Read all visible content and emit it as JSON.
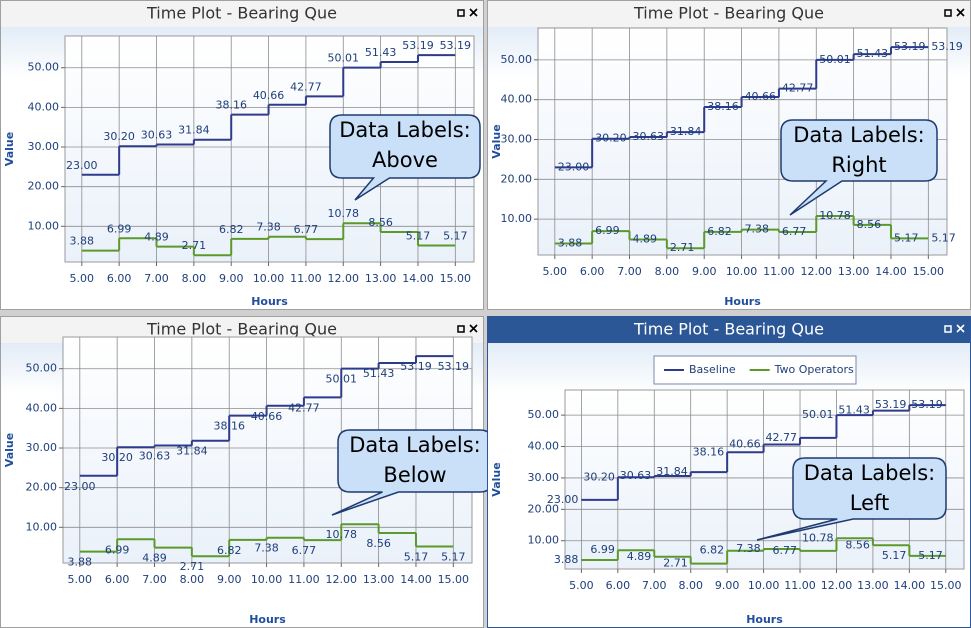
{
  "chart_data": [
    {
      "type": "step",
      "title": "Time Plot - Bearing Que",
      "xlabel": "Hours",
      "ylabel": "Value",
      "label_position": "above",
      "annotation": [
        "Data Labels:",
        "Above"
      ],
      "legend": false,
      "x": [
        5,
        6,
        7,
        8,
        9,
        10,
        11,
        12,
        13,
        14,
        15
      ],
      "xlim": [
        4.55,
        15.5
      ],
      "ylim": [
        1,
        58
      ],
      "grid": true,
      "xticks": [
        {
          "value": 5,
          "label": "5.00"
        },
        {
          "value": 6,
          "label": "6.00"
        },
        {
          "value": 7,
          "label": "7.00"
        },
        {
          "value": 8,
          "label": "8.00"
        },
        {
          "value": 9,
          "label": "9.00"
        },
        {
          "value": 10,
          "label": "10.00"
        },
        {
          "value": 11,
          "label": "11.00"
        },
        {
          "value": 12,
          "label": "12.00"
        },
        {
          "value": 13,
          "label": "13.00"
        },
        {
          "value": 14,
          "label": "14.00"
        },
        {
          "value": 15,
          "label": "15.00"
        }
      ],
      "yticks": [
        {
          "value": 10,
          "label": "10.00"
        },
        {
          "value": 20,
          "label": "20.00"
        },
        {
          "value": 30,
          "label": "30.00"
        },
        {
          "value": 40,
          "label": "40.00"
        },
        {
          "value": 50,
          "label": "50.00"
        }
      ],
      "series": [
        {
          "color": "#2e3a8c",
          "values": [
            23,
            30.2,
            30.63,
            31.84,
            38.16,
            40.66,
            42.77,
            50.01,
            51.43,
            53.19,
            53.19
          ],
          "value_labels": [
            "23.00",
            "30.20",
            "30.63",
            "31.84",
            "38.16",
            "40.66",
            "42.77",
            "50.01",
            "51.43",
            "53.19",
            "53.19"
          ]
        },
        {
          "color": "#5b9a2a",
          "values": [
            3.88,
            6.99,
            4.89,
            2.71,
            6.82,
            7.38,
            6.77,
            10.78,
            8.56,
            5.17,
            5.17
          ]
        }
      ]
    },
    {
      "type": "step",
      "title": "Time Plot - Bearing Que",
      "xlabel": "Hours",
      "ylabel": "Value",
      "label_position": "right",
      "annotation": [
        "Data Labels:",
        "Right"
      ],
      "legend": false,
      "x": [
        5,
        6,
        7,
        8,
        9,
        10,
        11,
        12,
        13,
        14,
        15
      ],
      "xlim": [
        4.55,
        15.5
      ],
      "ylim": [
        1,
        58
      ],
      "grid": true,
      "xticks": [
        {
          "value": 5,
          "label": "5.00"
        },
        {
          "value": 6,
          "label": "6.00"
        },
        {
          "value": 7,
          "label": "7.00"
        },
        {
          "value": 8,
          "label": "8.00"
        },
        {
          "value": 9,
          "label": "9.00"
        },
        {
          "value": 10,
          "label": "10.00"
        },
        {
          "value": 11,
          "label": "11.00"
        },
        {
          "value": 12,
          "label": "12.00"
        },
        {
          "value": 13,
          "label": "13.00"
        },
        {
          "value": 14,
          "label": "14.00"
        },
        {
          "value": 15,
          "label": "15.00"
        }
      ],
      "yticks": [
        {
          "value": 10,
          "label": "10.00"
        },
        {
          "value": 20,
          "label": "20.00"
        },
        {
          "value": 30,
          "label": "30.00"
        },
        {
          "value": 40,
          "label": "40.00"
        },
        {
          "value": 50,
          "label": "50.00"
        }
      ],
      "series": [
        {
          "color": "#2e3a8c",
          "values": [
            23,
            30.2,
            30.63,
            31.84,
            38.16,
            40.66,
            42.77,
            50.01,
            51.43,
            53.19,
            53.19
          ],
          "value_labels": [
            "23.00",
            "30.20",
            "30.63",
            "31.84",
            "38.16",
            "40.66",
            "42.77",
            "50.01",
            "51.43",
            "53.19",
            "53.19"
          ]
        },
        {
          "color": "#5b9a2a",
          "values": [
            3.88,
            6.99,
            4.89,
            2.71,
            6.82,
            7.38,
            6.77,
            10.78,
            8.56,
            5.17,
            5.17
          ]
        }
      ]
    },
    {
      "type": "step",
      "title": "Time Plot - Bearing Que",
      "xlabel": "Hours",
      "ylabel": "Value",
      "label_position": "below",
      "annotation": [
        "Data Labels:",
        "Below"
      ],
      "legend": false,
      "x": [
        5,
        6,
        7,
        8,
        9,
        10,
        11,
        12,
        13,
        14,
        15
      ],
      "xlim": [
        4.55,
        15.5
      ],
      "ylim": [
        1,
        58
      ],
      "grid": true,
      "xticks": [
        {
          "value": 5,
          "label": "5.00"
        },
        {
          "value": 6,
          "label": "6.00"
        },
        {
          "value": 7,
          "label": "7.00"
        },
        {
          "value": 8,
          "label": "8.00"
        },
        {
          "value": 9,
          "label": "9.00"
        },
        {
          "value": 10,
          "label": "10.00"
        },
        {
          "value": 11,
          "label": "11.00"
        },
        {
          "value": 12,
          "label": "12.00"
        },
        {
          "value": 13,
          "label": "13.00"
        },
        {
          "value": 14,
          "label": "14.00"
        },
        {
          "value": 15,
          "label": "15.00"
        }
      ],
      "yticks": [
        {
          "value": 10,
          "label": "10.00"
        },
        {
          "value": 20,
          "label": "20.00"
        },
        {
          "value": 30,
          "label": "30.00"
        },
        {
          "value": 40,
          "label": "40.00"
        },
        {
          "value": 50,
          "label": "50.00"
        }
      ],
      "series": [
        {
          "color": "#2e3a8c",
          "values": [
            23,
            30.2,
            30.63,
            31.84,
            38.16,
            40.66,
            42.77,
            50.01,
            51.43,
            53.19,
            53.19
          ],
          "value_labels": [
            "23.00",
            "30.20",
            "30.63",
            "31.84",
            "38.16",
            "40.66",
            "42.77",
            "50.01",
            "51.43",
            "53.19",
            "53.19"
          ]
        },
        {
          "color": "#5b9a2a",
          "values": [
            3.88,
            6.99,
            4.89,
            2.71,
            6.82,
            7.38,
            6.77,
            10.78,
            8.56,
            5.17,
            5.17
          ]
        }
      ]
    },
    {
      "type": "step",
      "title": "Time Plot - Bearing Que",
      "xlabel": "Hours",
      "ylabel": "Value",
      "label_position": "left",
      "annotation": [
        "Data Labels:",
        "Left"
      ],
      "legend": true,
      "x": [
        5,
        6,
        7,
        8,
        9,
        10,
        11,
        12,
        13,
        14,
        15
      ],
      "xlim": [
        4.55,
        15.5
      ],
      "ylim": [
        1,
        58
      ],
      "grid": true,
      "xticks": [
        {
          "value": 5,
          "label": "5.00"
        },
        {
          "value": 6,
          "label": "6.00"
        },
        {
          "value": 7,
          "label": "7.00"
        },
        {
          "value": 8,
          "label": "8.00"
        },
        {
          "value": 9,
          "label": "9.00"
        },
        {
          "value": 10,
          "label": "10.00"
        },
        {
          "value": 11,
          "label": "11.00"
        },
        {
          "value": 12,
          "label": "12.00"
        },
        {
          "value": 13,
          "label": "13.00"
        },
        {
          "value": 14,
          "label": "14.00"
        },
        {
          "value": 15,
          "label": "15.00"
        }
      ],
      "yticks": [
        {
          "value": 10,
          "label": "10.00"
        },
        {
          "value": 20,
          "label": "20.00"
        },
        {
          "value": 30,
          "label": "30.00"
        },
        {
          "value": 40,
          "label": "40.00"
        },
        {
          "value": 50,
          "label": "50.00"
        }
      ],
      "series": [
        {
          "name": "Baseline",
          "color": "#2e3a8c",
          "values": [
            23,
            30.2,
            30.63,
            31.84,
            38.16,
            40.66,
            42.77,
            50.01,
            51.43,
            53.19,
            53.19
          ],
          "value_labels": [
            "23.00",
            "30.20",
            "30.63",
            "31.84",
            "38.16",
            "40.66",
            "42.77",
            "50.01",
            "51.43",
            "53.19",
            "53.19"
          ]
        },
        {
          "name": "Two Operators",
          "color": "#5b9a2a",
          "values": [
            3.88,
            6.99,
            4.89,
            2.71,
            6.82,
            7.38,
            6.77,
            10.78,
            8.56,
            5.17,
            5.17
          ]
        }
      ]
    }
  ]
}
